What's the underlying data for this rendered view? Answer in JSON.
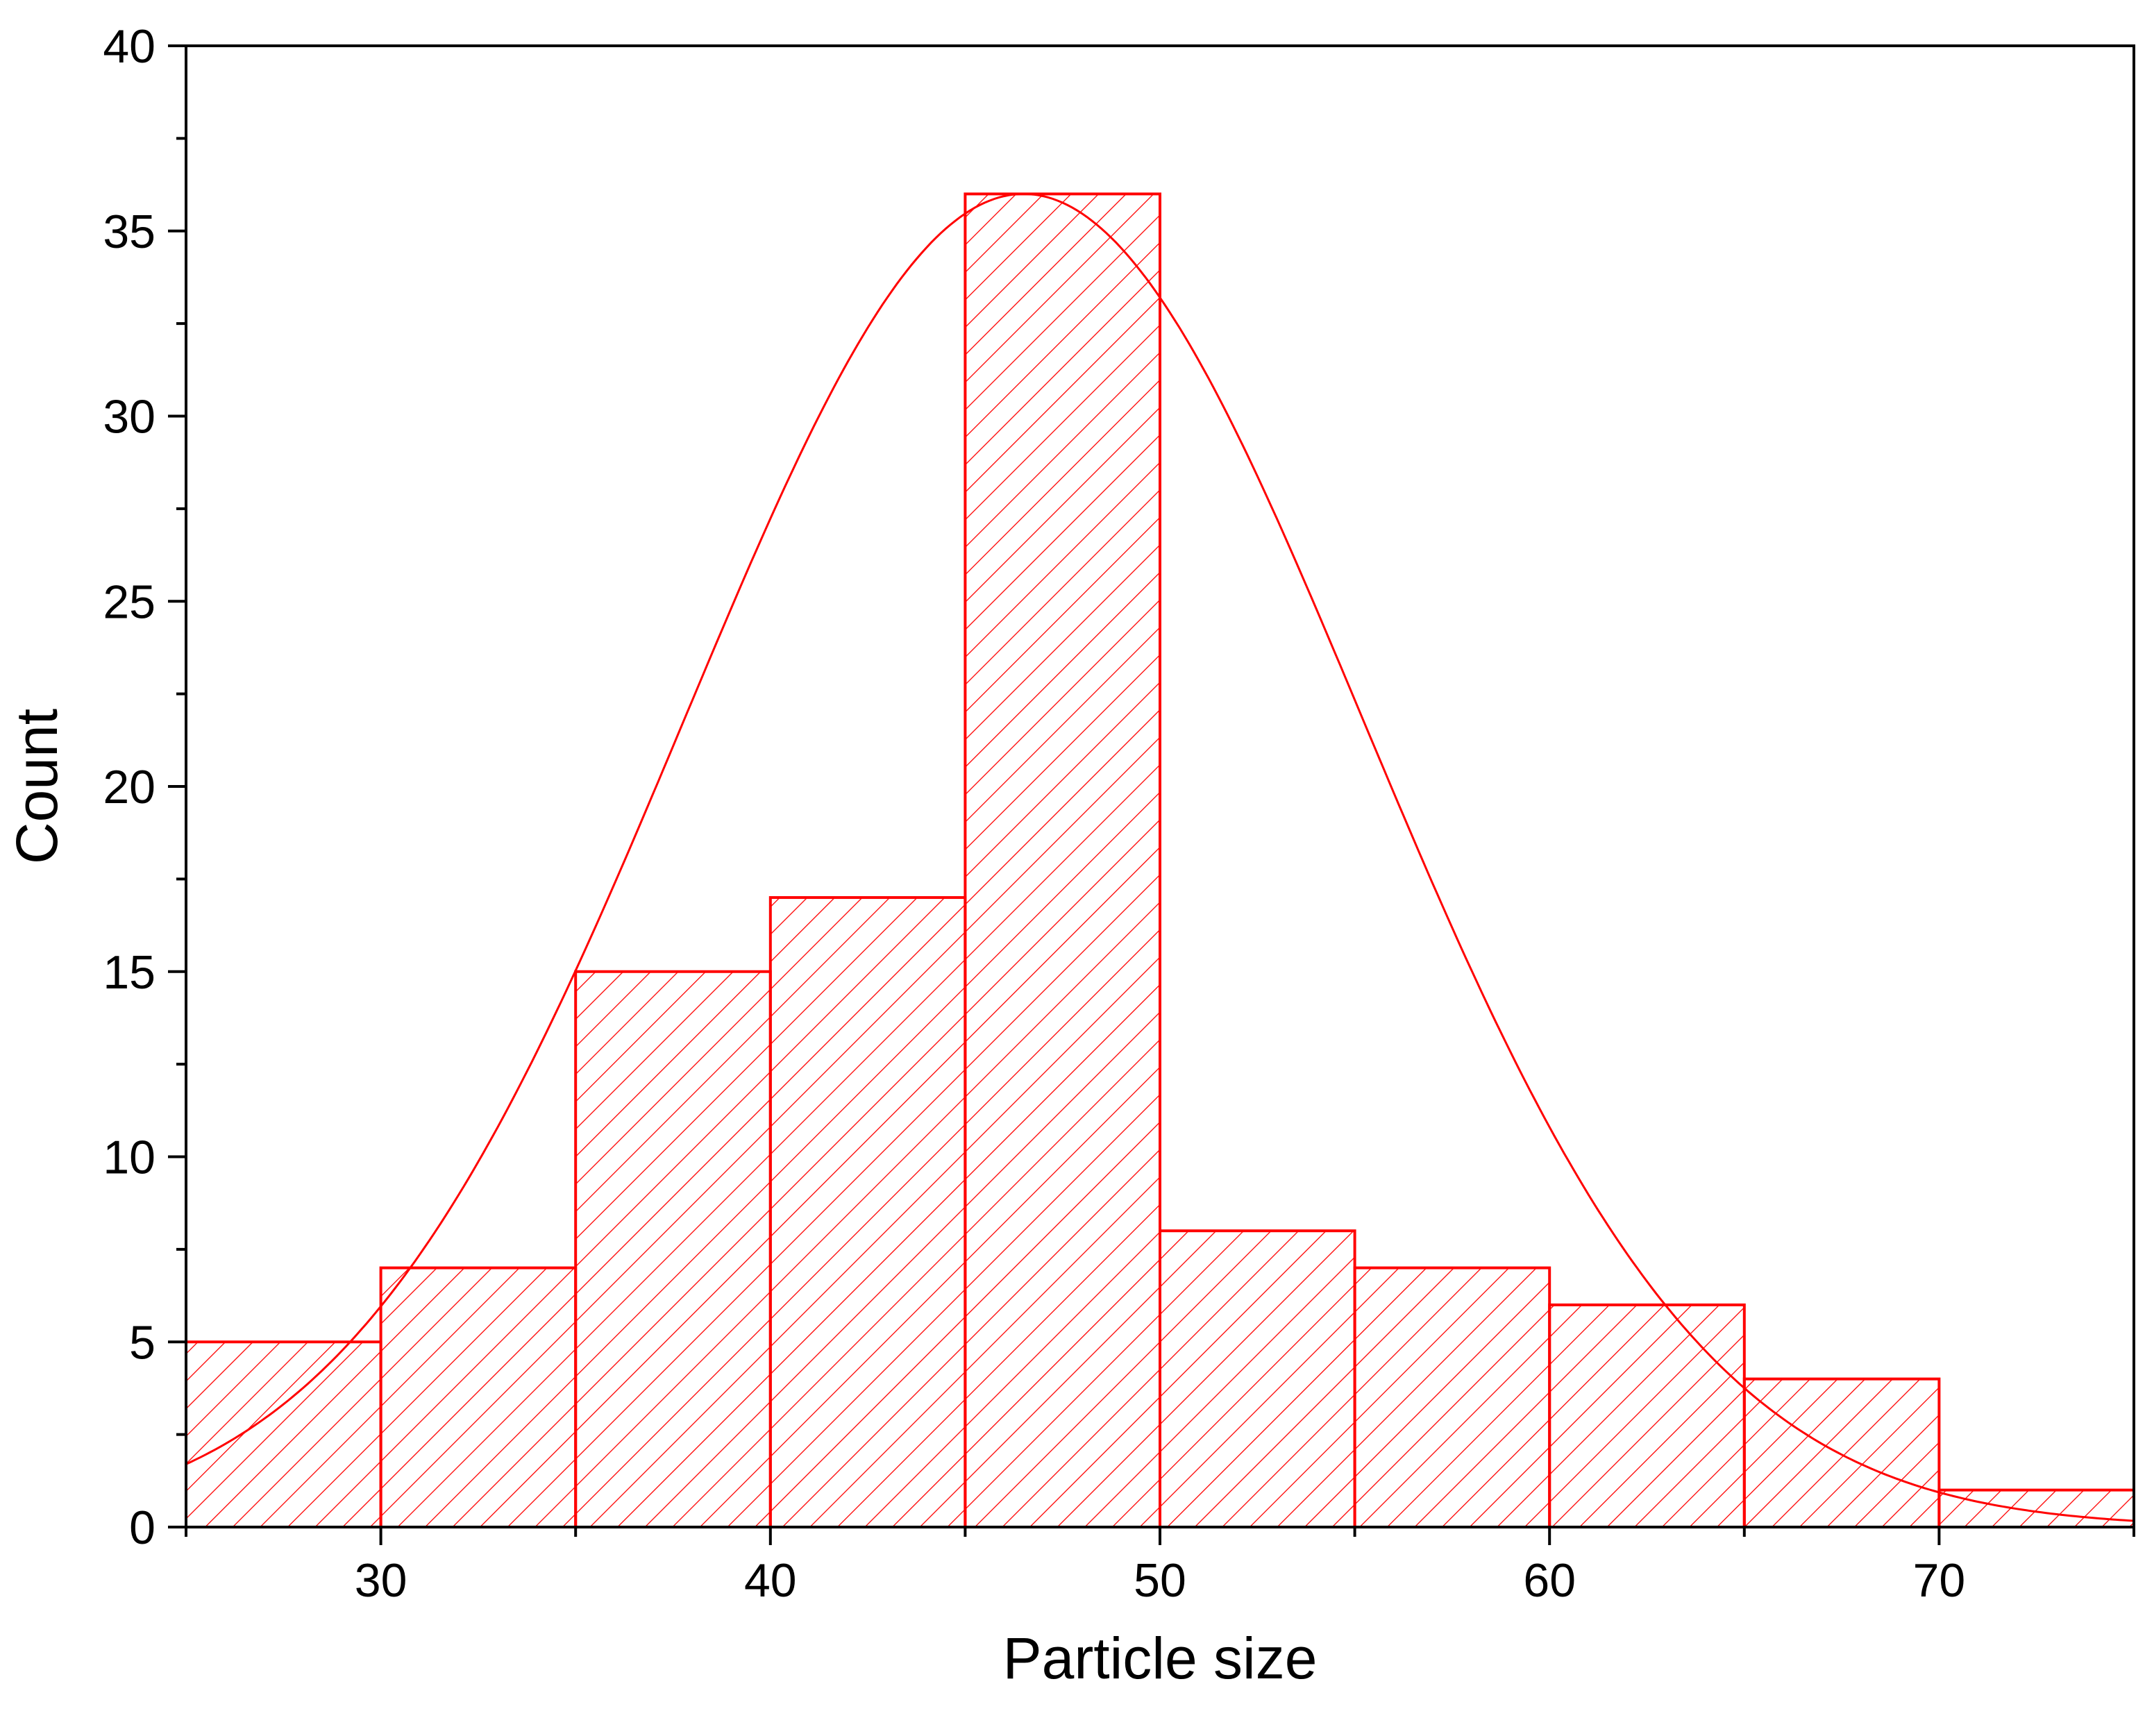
{
  "chart_data": {
    "type": "bar",
    "title": "",
    "xlabel": "Particle size",
    "ylabel": "Count",
    "xlim": [
      25,
      75
    ],
    "ylim": [
      0,
      40
    ],
    "x_ticks": [
      30,
      40,
      50,
      60,
      70
    ],
    "y_ticks": [
      0,
      5,
      10,
      15,
      20,
      25,
      30,
      35,
      40
    ],
    "bins": [
      {
        "start": 25,
        "end": 30,
        "count": 5
      },
      {
        "start": 30,
        "end": 35,
        "count": 7
      },
      {
        "start": 35,
        "end": 40,
        "count": 15
      },
      {
        "start": 40,
        "end": 45,
        "count": 17
      },
      {
        "start": 45,
        "end": 50,
        "count": 36
      },
      {
        "start": 50,
        "end": 55,
        "count": 8
      },
      {
        "start": 55,
        "end": 60,
        "count": 7
      },
      {
        "start": 60,
        "end": 65,
        "count": 6
      },
      {
        "start": 65,
        "end": 70,
        "count": 4
      },
      {
        "start": 70,
        "end": 75,
        "count": 1
      }
    ],
    "fit_curve": {
      "type": "normal",
      "mean": 46.5,
      "sigma": 8.7,
      "peak": 36
    },
    "bar_color": "#ff0000",
    "bar_fill": "diagonal-hatch",
    "grid": false,
    "legend": false
  }
}
